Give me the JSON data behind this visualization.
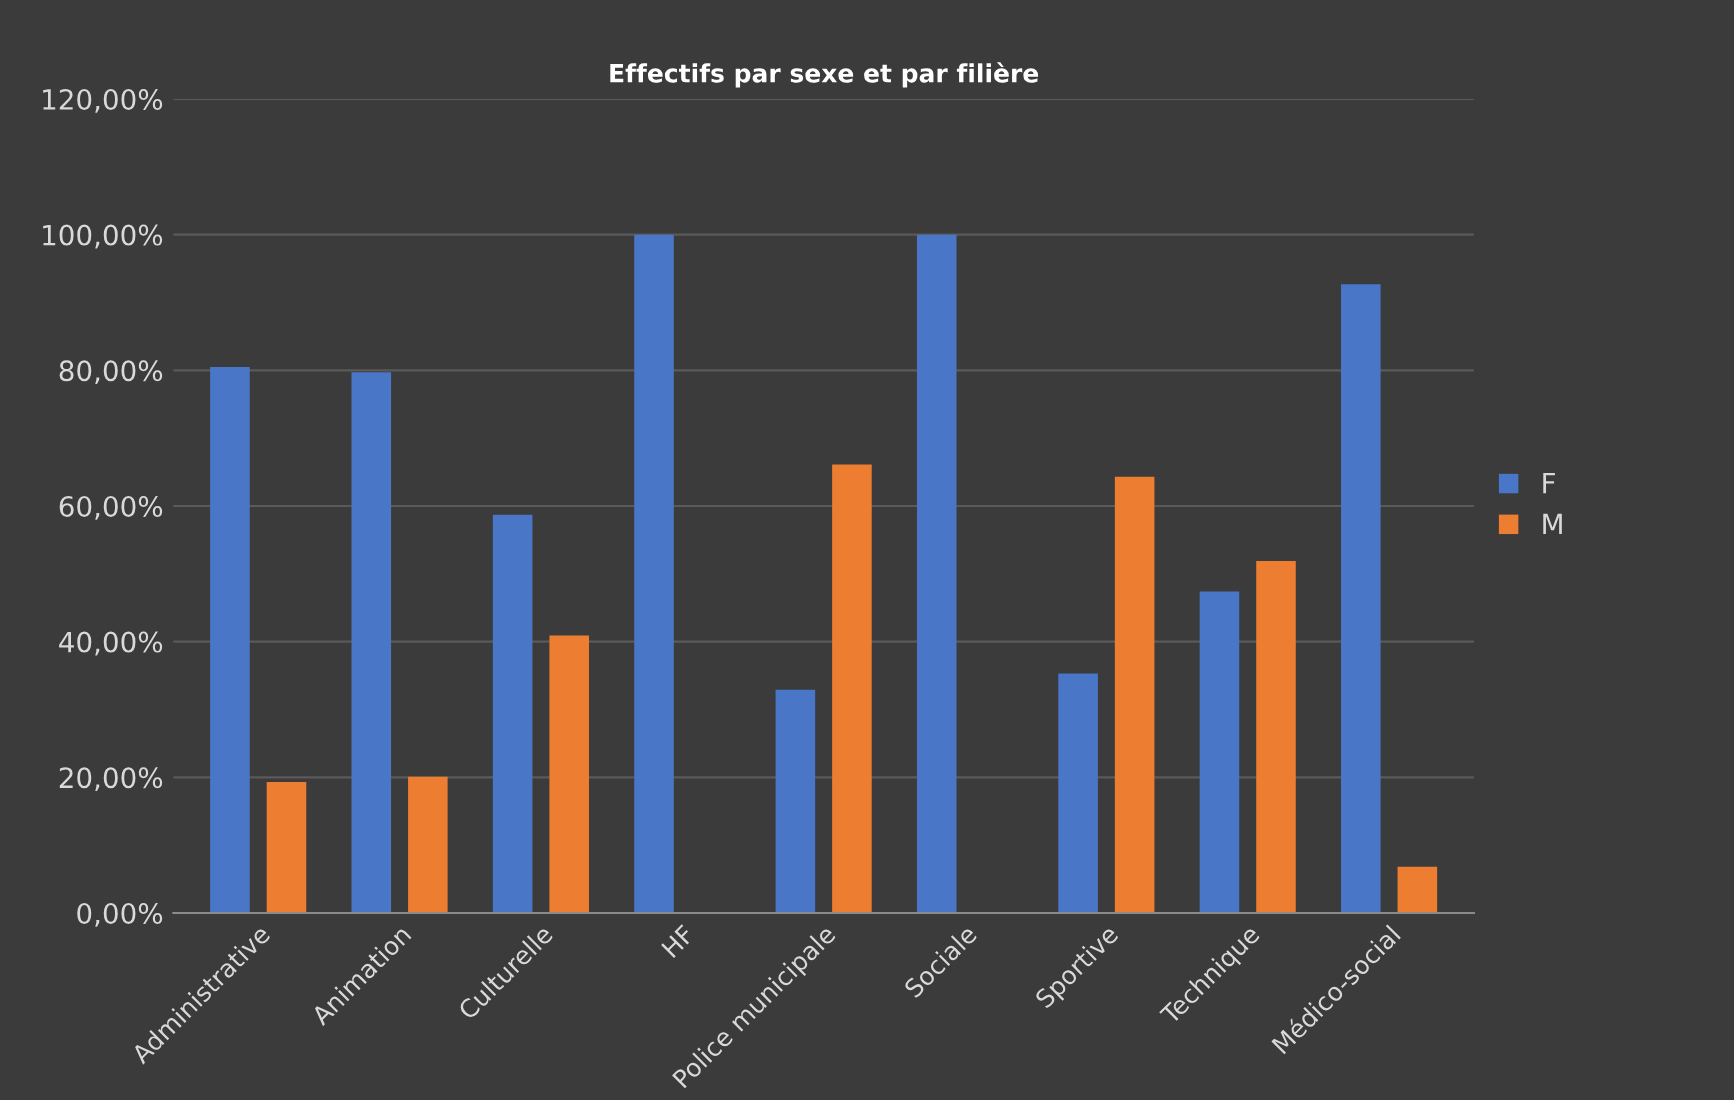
{
  "chart_data": {
    "type": "bar",
    "title": "Effectifs par sexe et par filière",
    "categories": [
      "Administrative",
      "Animation",
      "Culturelle",
      "HF",
      "Police municipale",
      "Sociale",
      "Sportive",
      "Technique",
      "Médico-social"
    ],
    "series": [
      {
        "name": "F",
        "color": "#4a76c8",
        "values": [
          80.5,
          79.7,
          58.7,
          100,
          32.9,
          100,
          35.3,
          47.4,
          92.7
        ]
      },
      {
        "name": "M",
        "color": "#ed7d31",
        "values": [
          19.3,
          20.1,
          40.9,
          0,
          66.1,
          0,
          64.3,
          51.9,
          6.8
        ]
      }
    ],
    "ylim": [
      0,
      120
    ],
    "yticks": [
      {
        "value": 0,
        "label": "0,00%"
      },
      {
        "value": 20,
        "label": "20,00%"
      },
      {
        "value": 40,
        "label": "40,00%"
      },
      {
        "value": 60,
        "label": "60,00%"
      },
      {
        "value": 80,
        "label": "80,00%"
      },
      {
        "value": 100,
        "label": "100,00%"
      },
      {
        "value": 120,
        "label": "120,00%"
      }
    ],
    "grid": "y",
    "legend": "right"
  }
}
